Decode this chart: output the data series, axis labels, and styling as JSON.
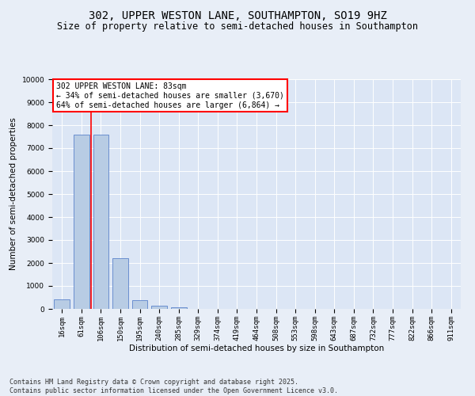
{
  "title": "302, UPPER WESTON LANE, SOUTHAMPTON, SO19 9HZ",
  "subtitle": "Size of property relative to semi-detached houses in Southampton",
  "xlabel": "Distribution of semi-detached houses by size in Southampton",
  "ylabel": "Number of semi-detached properties",
  "categories": [
    "16sqm",
    "61sqm",
    "106sqm",
    "150sqm",
    "195sqm",
    "240sqm",
    "285sqm",
    "329sqm",
    "374sqm",
    "419sqm",
    "464sqm",
    "508sqm",
    "553sqm",
    "598sqm",
    "643sqm",
    "687sqm",
    "732sqm",
    "777sqm",
    "822sqm",
    "866sqm",
    "911sqm"
  ],
  "values": [
    430,
    7600,
    7600,
    2200,
    370,
    130,
    70,
    0,
    0,
    0,
    0,
    0,
    0,
    0,
    0,
    0,
    0,
    0,
    0,
    0,
    0
  ],
  "bar_color": "#b8cce4",
  "bar_edge_color": "#4472c4",
  "property_line_x": 1.5,
  "property_size": "83sqm",
  "pct_smaller": 34,
  "n_smaller": 3670,
  "pct_larger": 64,
  "n_larger": 6864,
  "ylim": [
    0,
    10000
  ],
  "yticks": [
    0,
    1000,
    2000,
    3000,
    4000,
    5000,
    6000,
    7000,
    8000,
    9000,
    10000
  ],
  "bg_color": "#e8eef7",
  "plot_bg_color": "#dce6f5",
  "footer": "Contains HM Land Registry data © Crown copyright and database right 2025.\nContains public sector information licensed under the Open Government Licence v3.0.",
  "title_fontsize": 10,
  "subtitle_fontsize": 8.5,
  "axis_label_fontsize": 7.5,
  "tick_fontsize": 6.5,
  "footer_fontsize": 6,
  "ann_fontsize": 7
}
